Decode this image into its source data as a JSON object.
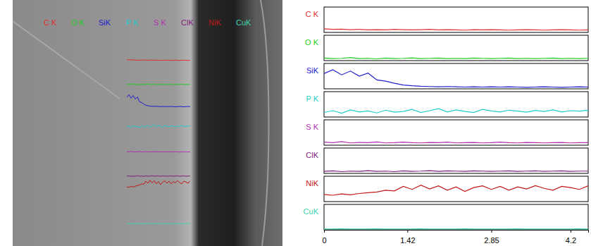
{
  "chart_data": {
    "type": "line",
    "x": [
      0,
      0.15,
      0.3,
      0.45,
      0.6,
      0.75,
      0.9,
      1.05,
      1.2,
      1.35,
      1.5,
      1.65,
      1.8,
      1.95,
      2.1,
      2.25,
      2.4,
      2.55,
      2.7,
      2.85,
      3,
      3.15,
      3.3,
      3.45,
      3.6,
      3.75,
      3.9,
      4.05,
      4.2,
      4.35,
      4.5
    ],
    "xlim": [
      0,
      4.5
    ],
    "xticks": [
      0,
      1.42,
      2.85,
      4.2
    ],
    "ylim": [
      0,
      100
    ],
    "tick_labels": "x",
    "series": [
      {
        "name": "C K",
        "color": "#e03030",
        "values": [
          14,
          12,
          13,
          11,
          12,
          10,
          11,
          10,
          12,
          11,
          10,
          11,
          12,
          10,
          11,
          10,
          9,
          11,
          10,
          11,
          10,
          9,
          10,
          11,
          10,
          9,
          10,
          11,
          10,
          9,
          10
        ]
      },
      {
        "name": "O K",
        "color": "#22cc22",
        "values": [
          10,
          8,
          9,
          12,
          8,
          9,
          7,
          10,
          8,
          9,
          11,
          8,
          9,
          10,
          8,
          9,
          8,
          10,
          9,
          8,
          9,
          10,
          8,
          9,
          8,
          9,
          10,
          8,
          9,
          8,
          9
        ]
      },
      {
        "name": "SiK",
        "color": "#2020cc",
        "values": [
          60,
          75,
          55,
          70,
          50,
          62,
          35,
          30,
          22,
          15,
          12,
          10,
          9,
          8,
          9,
          8,
          7,
          8,
          7,
          8,
          7,
          8,
          7,
          6,
          7,
          8,
          7,
          6,
          7,
          8,
          7
        ]
      },
      {
        "name": "P K",
        "color": "#22cccc",
        "values": [
          18,
          25,
          15,
          28,
          20,
          24,
          16,
          27,
          19,
          22,
          30,
          18,
          25,
          33,
          20,
          28,
          22,
          18,
          30,
          24,
          20,
          27,
          23,
          19,
          26,
          22,
          28,
          20,
          25,
          23,
          27
        ]
      },
      {
        "name": "S K",
        "color": "#b030b0",
        "values": [
          12,
          10,
          14,
          9,
          11,
          10,
          13,
          9,
          10,
          12,
          10,
          9,
          11,
          10,
          12,
          9,
          10,
          11,
          9,
          10,
          12,
          10,
          9,
          11,
          10,
          9,
          10,
          11,
          9,
          10,
          10
        ]
      },
      {
        "name": "ClK",
        "color": "#802080",
        "values": [
          8,
          10,
          7,
          9,
          8,
          11,
          8,
          9,
          7,
          10,
          8,
          9,
          11,
          8,
          10,
          9,
          8,
          10,
          9,
          8,
          9,
          10,
          8,
          9,
          10,
          8,
          9,
          10,
          8,
          9,
          9
        ]
      },
      {
        "name": "NiK",
        "color": "#c01818",
        "values": [
          28,
          25,
          30,
          27,
          32,
          35,
          38,
          45,
          42,
          60,
          48,
          65,
          50,
          62,
          45,
          58,
          40,
          55,
          62,
          48,
          60,
          45,
          58,
          50,
          63,
          52,
          45,
          60,
          55,
          48,
          62
        ]
      },
      {
        "name": "CuK",
        "color": "#40d0b0",
        "values": [
          3,
          3,
          4,
          3,
          3,
          3,
          4,
          3,
          3,
          3,
          3,
          4,
          3,
          3,
          3,
          3,
          4,
          3,
          3,
          3,
          3,
          3,
          4,
          3,
          3,
          3,
          3,
          3,
          3,
          4,
          3
        ]
      }
    ]
  }
}
